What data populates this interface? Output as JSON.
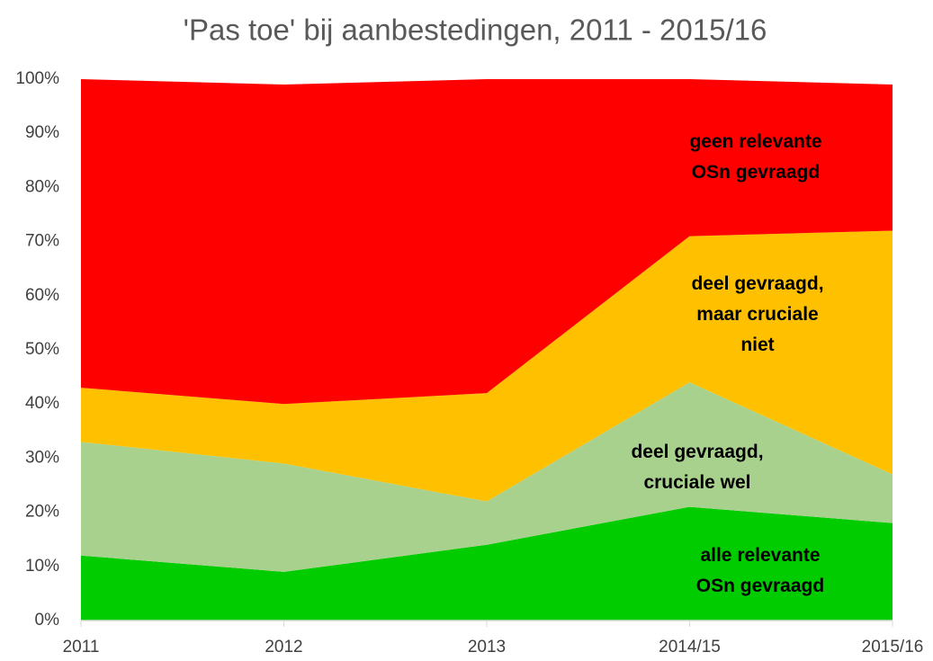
{
  "chart_data": {
    "type": "stacked_area",
    "title": "'Pas toe' bij aanbestedingen, 2011 - 2015/16",
    "categories": [
      "2011",
      "2012",
      "2013",
      "2014/15",
      "2015/16"
    ],
    "series": [
      {
        "name": "alle relevante OSn gevraagd",
        "color": "#00cc00",
        "values": [
          12,
          9,
          14,
          21,
          18
        ]
      },
      {
        "name": "deel gevraagd, cruciale wel",
        "color": "#a9d18e",
        "values": [
          21,
          20,
          8,
          23,
          9
        ]
      },
      {
        "name": "deel gevraagd, maar cruciale niet",
        "color": "#ffc000",
        "values": [
          10,
          11,
          20,
          27,
          45
        ]
      },
      {
        "name": "geen relevante OSn gevraagd",
        "color": "#ff0000",
        "values": [
          57,
          59,
          58,
          29,
          27
        ]
      }
    ],
    "ylim": [
      0,
      100
    ],
    "yticks": [
      {
        "value": 0,
        "label": "0%"
      },
      {
        "value": 10,
        "label": "10%"
      },
      {
        "value": 20,
        "label": "20%"
      },
      {
        "value": 30,
        "label": "30%"
      },
      {
        "value": 40,
        "label": "40%"
      },
      {
        "value": 50,
        "label": "50%"
      },
      {
        "value": 60,
        "label": "60%"
      },
      {
        "value": 70,
        "label": "70%"
      },
      {
        "value": 80,
        "label": "80%"
      },
      {
        "value": 90,
        "label": "90%"
      },
      {
        "value": 100,
        "label": "100%"
      }
    ]
  }
}
